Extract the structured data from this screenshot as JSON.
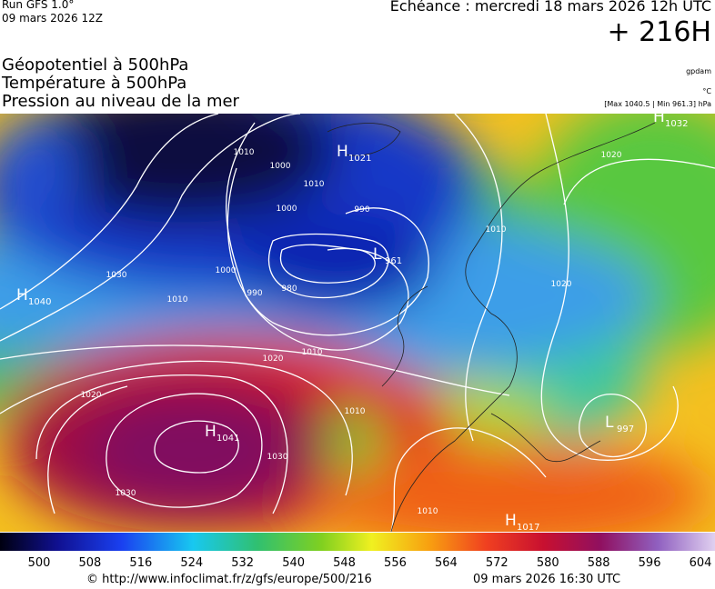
{
  "header": {
    "run": "Run GFS 1.0°",
    "run_date": "09 mars 2026 12Z",
    "valid": "Echéance : mercredi 18 mars 2026 12h UTC",
    "lead": "+ 216H"
  },
  "titles": [
    "Géopotentiel à 500hPa",
    "Température à 500hPa",
    "Pression au niveau de la mer"
  ],
  "units": [
    "gpdam",
    "°C",
    "[Max 1040.5 | Min 961.3] hPa"
  ],
  "centers": [
    {
      "letter": "H",
      "value": 1032
    },
    {
      "letter": "H",
      "value": 1021
    },
    {
      "letter": "L",
      "value": 961
    },
    {
      "letter": "H",
      "value": 1040
    },
    {
      "letter": "H",
      "value": 1041
    },
    {
      "letter": "L",
      "value": 997
    },
    {
      "letter": "H",
      "value": 1017
    }
  ],
  "isobar_labels": [
    1010,
    1000,
    1010,
    1000,
    990,
    980,
    990,
    1000,
    1030,
    1010,
    1010,
    1020,
    1020,
    1030,
    1030,
    1010,
    1010,
    1020,
    1020,
    1010
  ],
  "scale": {
    "ticks": [
      500,
      508,
      516,
      524,
      532,
      540,
      548,
      556,
      564,
      572,
      580,
      588,
      596,
      604
    ]
  },
  "footer": {
    "url": "© http://www.infoclimat.fr/z/gfs/europe/500/216",
    "date": "09 mars 2026 16:30 UTC"
  }
}
